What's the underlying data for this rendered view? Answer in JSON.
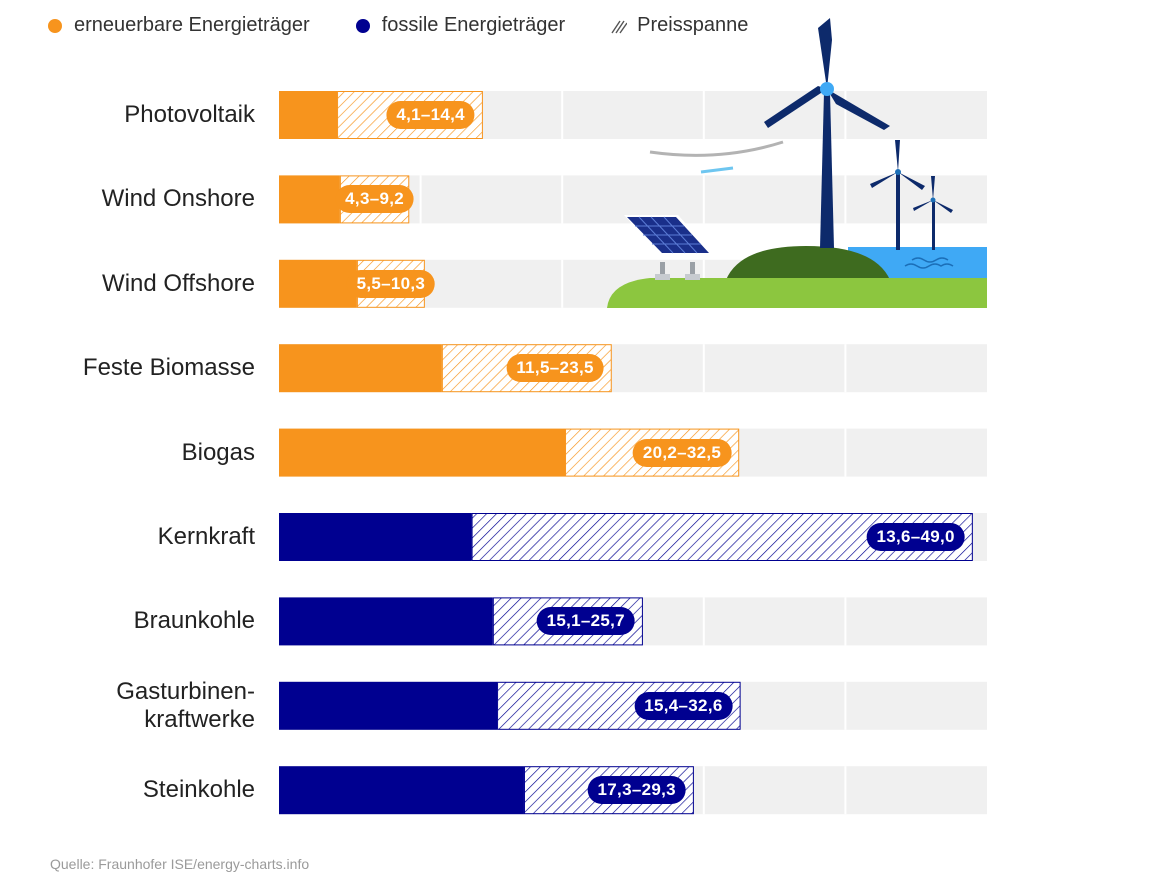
{
  "legend": {
    "renewable": "erneuerbare Energieträger",
    "fossil": "fossile Energieträger",
    "range": "Preisspanne"
  },
  "colors": {
    "renewable": "#f7941d",
    "fossil": "#000090",
    "track": "#f0f0f0",
    "range_renewable": "#f7941d",
    "range_fossil": "#000090"
  },
  "source": "Quelle: Fraunhofer ISE/energy-charts.info",
  "chart_data": {
    "type": "bar",
    "orientation": "horizontal",
    "title": "",
    "xlabel": "",
    "ylabel": "",
    "xlim": [
      0,
      50
    ],
    "grid": true,
    "categories": [
      "Photovoltaik",
      "Wind Onshore",
      "Wind Offshore",
      "Feste Biomasse",
      "Biogas",
      "Kernkraft",
      "Braunkohle",
      "Gasturbinen-kraftwerke",
      "Steinkohle"
    ],
    "label_lines": [
      [
        "Photovoltaik"
      ],
      [
        "Wind Onshore"
      ],
      [
        "Wind Offshore"
      ],
      [
        "Feste Biomasse"
      ],
      [
        "Biogas"
      ],
      [
        "Kernkraft"
      ],
      [
        "Braunkohle"
      ],
      [
        "Gasturbinen-",
        "kraftwerke"
      ],
      [
        "Steinkohle"
      ]
    ],
    "group": [
      "renewable",
      "renewable",
      "renewable",
      "renewable",
      "renewable",
      "fossil",
      "fossil",
      "fossil",
      "fossil"
    ],
    "min": [
      4.1,
      4.3,
      5.5,
      11.5,
      20.2,
      13.6,
      15.1,
      15.4,
      17.3
    ],
    "max": [
      14.4,
      9.2,
      10.3,
      23.5,
      32.5,
      49.0,
      25.7,
      32.6,
      29.3
    ],
    "range_labels": [
      "4,1–14,4",
      "4,3–9,2",
      "5,5–10,3",
      "11,5–23,5",
      "20,2–32,5",
      "13,6–49,0",
      "15,1–25,7",
      "15,4–32,6",
      "17,3–29,3"
    ],
    "legend_position": "top-left"
  }
}
